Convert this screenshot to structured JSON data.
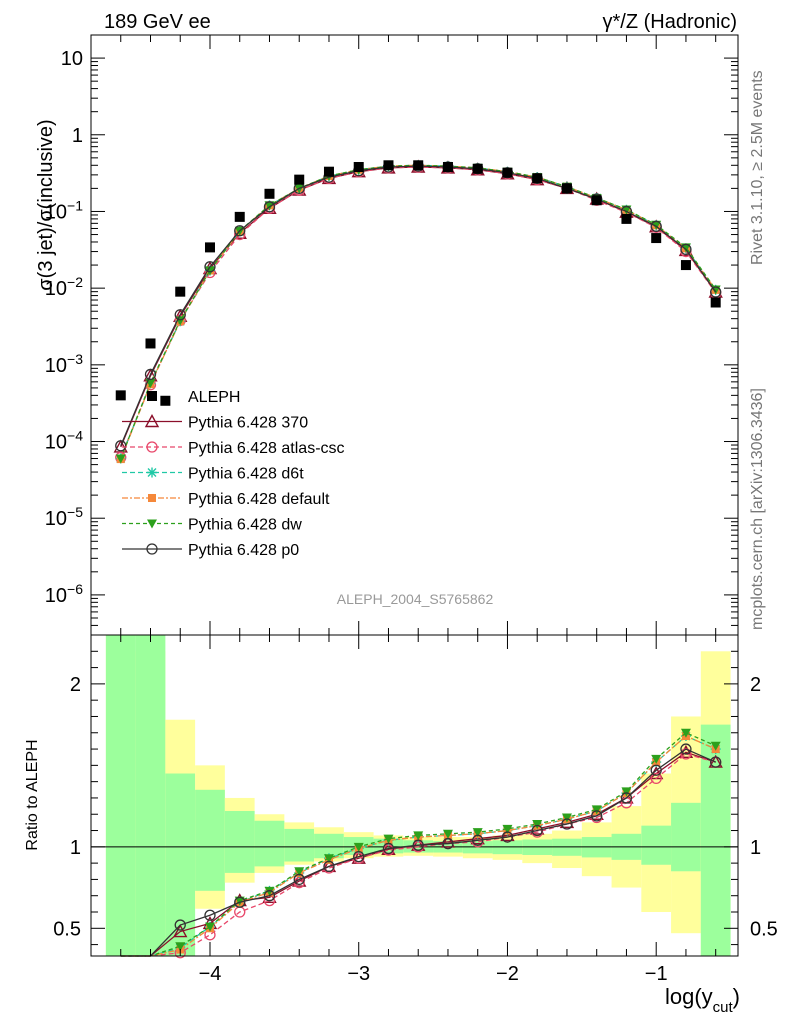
{
  "header": {
    "left_title": "189 GeV ee",
    "right_title": "γ*/Z (Hadronic)"
  },
  "side_labels": {
    "rivet": "Rivet 3.1.10, ≥ 2.5M events",
    "mcplots": "mcplots.cern.ch [arXiv:1306.3436]"
  },
  "watermark": "ALEPH_2004_S5765862",
  "colors": {
    "data": "#000000",
    "p370": "#8b0f2a",
    "atlas": "#e8476a",
    "d6t": "#20c9a6",
    "default": "#f5883a",
    "dw": "#2ca01c",
    "p0": "#333333",
    "band_green": "#9cff9c",
    "band_yellow": "#ffff9c"
  },
  "chart_data": {
    "type": "line",
    "main": {
      "ylabel": "σ(3 jet)/σ(inclusive)",
      "yscale": "log",
      "ylim": [
        3e-07,
        20
      ],
      "ytick_labels": [
        "10",
        "1",
        "10⁻¹",
        "10⁻²",
        "10⁻³",
        "10⁻⁴",
        "10⁻⁵",
        "10⁻⁶"
      ],
      "ytick_values": [
        10,
        1,
        0.1,
        0.01,
        0.001,
        0.0001,
        1e-05,
        1e-06
      ]
    },
    "ratio": {
      "ylabel": "Ratio to ALEPH",
      "ylim": [
        0.33,
        2.3
      ],
      "ytick_labels": [
        "0.5",
        "1",
        "2"
      ],
      "ytick_values": [
        0.5,
        1,
        2
      ]
    },
    "xlabel": "log(y",
    "xlabel_sub": "cut",
    "xlabel_end": ")",
    "xlim": [
      -4.8,
      -0.45
    ],
    "xtick_labels": [
      "−4",
      "−3",
      "−2",
      "−1"
    ],
    "xtick_values": [
      -4,
      -3,
      -2,
      -1
    ],
    "x": [
      -4.6,
      -4.4,
      -4.2,
      -4.0,
      -3.8,
      -3.6,
      -3.4,
      -3.2,
      -3.0,
      -2.8,
      -2.6,
      -2.4,
      -2.2,
      -2.0,
      -1.8,
      -1.6,
      -1.4,
      -1.2,
      -1.0,
      -0.8,
      -0.6
    ],
    "data_points": [
      [
        -4.6,
        0.0004
      ],
      [
        -4.4,
        0.0019
      ],
      [
        -4.3,
        0.00034
      ],
      [
        -4.2,
        0.009
      ],
      [
        -4.0,
        0.034
      ],
      [
        -3.8,
        0.085
      ],
      [
        -3.6,
        0.17
      ],
      [
        -3.4,
        0.26
      ],
      [
        -3.2,
        0.33
      ],
      [
        -3.0,
        0.38
      ],
      [
        -2.8,
        0.4
      ],
      [
        -2.6,
        0.4
      ],
      [
        -2.4,
        0.38
      ],
      [
        -2.2,
        0.36
      ],
      [
        -2.0,
        0.32
      ],
      [
        -1.8,
        0.27
      ],
      [
        -1.6,
        0.2
      ],
      [
        -1.4,
        0.14
      ],
      [
        -1.2,
        0.08
      ],
      [
        -1.0,
        0.045
      ],
      [
        -0.8,
        0.02
      ],
      [
        -0.6,
        0.0065
      ]
    ],
    "series": [
      {
        "name": "Pythia 6.428 370",
        "key": "p370",
        "marker": "triangle-open",
        "dash": "",
        "values": [
          8.5e-05,
          0.00072,
          0.0043,
          0.018,
          0.052,
          0.11,
          0.19,
          0.27,
          0.33,
          0.37,
          0.38,
          0.37,
          0.35,
          0.31,
          0.26,
          0.2,
          0.145,
          0.098,
          0.063,
          0.031,
          0.0089
        ],
        "ratio": [
          0.33,
          0.33,
          0.48,
          0.53,
          0.67,
          0.69,
          0.79,
          0.88,
          0.93,
          0.985,
          1.01,
          1.03,
          1.05,
          1.07,
          1.11,
          1.15,
          1.2,
          1.3,
          1.45,
          1.58,
          1.52
        ]
      },
      {
        "name": "Pythia 6.428 atlas-csc",
        "key": "atlas",
        "marker": "circle-open",
        "dash": "5,3",
        "values": [
          6.2e-05,
          0.00055,
          0.0038,
          0.016,
          0.05,
          0.11,
          0.19,
          0.27,
          0.33,
          0.37,
          0.38,
          0.37,
          0.35,
          0.31,
          0.26,
          0.2,
          0.14,
          0.097,
          0.062,
          0.03,
          0.0087
        ],
        "ratio": [
          0.33,
          0.33,
          0.35,
          0.46,
          0.6,
          0.67,
          0.78,
          0.87,
          0.93,
          0.98,
          1.0,
          1.02,
          1.03,
          1.06,
          1.09,
          1.14,
          1.18,
          1.27,
          1.42,
          1.57,
          1.52
        ]
      },
      {
        "name": "Pythia 6.428 d6t",
        "key": "d6t",
        "marker": "star",
        "dash": "5,3",
        "values": [
          6e-05,
          0.00057,
          0.0037,
          0.017,
          0.055,
          0.12,
          0.2,
          0.29,
          0.35,
          0.39,
          0.4,
          0.39,
          0.37,
          0.33,
          0.28,
          0.21,
          0.15,
          0.105,
          0.066,
          0.033,
          0.0095
        ],
        "ratio": [
          0.33,
          0.33,
          0.38,
          0.51,
          0.66,
          0.73,
          0.84,
          0.93,
          0.99,
          1.04,
          1.06,
          1.07,
          1.08,
          1.1,
          1.13,
          1.17,
          1.22,
          1.33,
          1.52,
          1.68,
          1.6
        ]
      },
      {
        "name": "Pythia 6.428 default",
        "key": "default",
        "marker": "square",
        "dash": "6,2,2,2",
        "values": [
          5.9e-05,
          0.00056,
          0.0037,
          0.017,
          0.055,
          0.12,
          0.2,
          0.29,
          0.35,
          0.39,
          0.4,
          0.39,
          0.37,
          0.33,
          0.28,
          0.21,
          0.15,
          0.105,
          0.066,
          0.033,
          0.0095
        ],
        "ratio": [
          0.33,
          0.33,
          0.37,
          0.5,
          0.66,
          0.72,
          0.84,
          0.92,
          0.99,
          1.04,
          1.06,
          1.07,
          1.08,
          1.1,
          1.13,
          1.17,
          1.22,
          1.33,
          1.52,
          1.68,
          1.6
        ]
      },
      {
        "name": "Pythia 6.428 dw",
        "key": "dw",
        "marker": "triangle-down",
        "dash": "4,3",
        "values": [
          6e-05,
          0.00058,
          0.0038,
          0.017,
          0.056,
          0.12,
          0.2,
          0.29,
          0.35,
          0.39,
          0.4,
          0.39,
          0.37,
          0.33,
          0.28,
          0.21,
          0.15,
          0.106,
          0.067,
          0.034,
          0.0096
        ],
        "ratio": [
          0.33,
          0.33,
          0.39,
          0.51,
          0.67,
          0.73,
          0.85,
          0.93,
          1.0,
          1.05,
          1.07,
          1.08,
          1.09,
          1.11,
          1.14,
          1.18,
          1.23,
          1.34,
          1.54,
          1.7,
          1.62
        ]
      },
      {
        "name": "Pythia 6.428 p0",
        "key": "p0",
        "marker": "circle-open",
        "dash": "",
        "values": [
          8.8e-05,
          0.00075,
          0.0045,
          0.019,
          0.056,
          0.115,
          0.2,
          0.28,
          0.34,
          0.38,
          0.39,
          0.38,
          0.36,
          0.32,
          0.27,
          0.2,
          0.145,
          0.1,
          0.064,
          0.032,
          0.0089
        ],
        "ratio": [
          0.33,
          0.33,
          0.52,
          0.58,
          0.66,
          0.7,
          0.8,
          0.88,
          0.94,
          0.99,
          1.01,
          1.02,
          1.04,
          1.06,
          1.1,
          1.14,
          1.19,
          1.3,
          1.47,
          1.6,
          1.52
        ]
      }
    ],
    "uncertainty_bands": {
      "bin_edges": [
        -4.7,
        -4.5,
        -4.3,
        -4.1,
        -3.9,
        -3.7,
        -3.5,
        -3.3,
        -3.1,
        -2.9,
        -2.7,
        -2.5,
        -2.3,
        -2.1,
        -1.9,
        -1.7,
        -1.5,
        -1.3,
        -1.1,
        -0.9,
        -0.7,
        -0.5
      ],
      "green_low": [
        0.3,
        0.3,
        0.3,
        0.73,
        0.84,
        0.88,
        0.91,
        0.93,
        0.95,
        0.96,
        0.965,
        0.965,
        0.96,
        0.955,
        0.95,
        0.945,
        0.935,
        0.92,
        0.89,
        0.85,
        0.3
      ],
      "green_high": [
        2.5,
        2.5,
        1.45,
        1.35,
        1.22,
        1.16,
        1.11,
        1.08,
        1.06,
        1.05,
        1.04,
        1.035,
        1.035,
        1.04,
        1.045,
        1.05,
        1.06,
        1.08,
        1.13,
        1.27,
        1.75
      ],
      "yellow_low": [
        0.3,
        0.3,
        0.65,
        0.62,
        0.78,
        0.84,
        0.89,
        0.91,
        0.93,
        0.94,
        0.945,
        0.94,
        0.93,
        0.92,
        0.9,
        0.87,
        0.82,
        0.75,
        0.6,
        0.47,
        0.3
      ],
      "yellow_high": [
        2.5,
        2.2,
        1.78,
        1.5,
        1.3,
        1.2,
        1.15,
        1.12,
        1.09,
        1.07,
        1.06,
        1.06,
        1.06,
        1.07,
        1.08,
        1.1,
        1.15,
        1.25,
        1.45,
        1.8,
        2.2
      ]
    }
  }
}
